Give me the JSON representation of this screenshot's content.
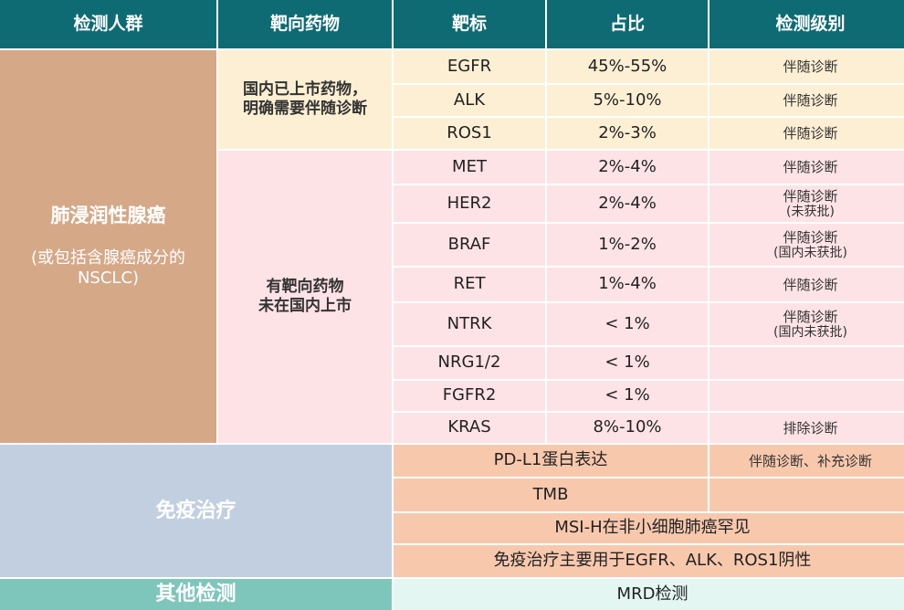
{
  "header": [
    "检测人群",
    "靶向药物",
    "靶标",
    "占比",
    "检测级别"
  ],
  "lung_group": {
    "title": "肺浸润性腺癌",
    "subtitle": "(或包括含腺癌成分的NSCLC)"
  },
  "drug_groups": [
    {
      "line1": "国内已上市药物，",
      "line2": "明确需要伴随诊断"
    },
    {
      "line1": "有靶向药物",
      "line2": "未在国内上市"
    }
  ],
  "targets": [
    {
      "name": "EGFR",
      "pct": "45%-55%",
      "level": "伴随诊断",
      "level_note": ""
    },
    {
      "name": "ALK",
      "pct": "5%-10%",
      "level": "伴随诊断",
      "level_note": ""
    },
    {
      "name": "ROS1",
      "pct": "2%-3%",
      "level": "伴随诊断",
      "level_note": ""
    },
    {
      "name": "MET",
      "pct": "2%-4%",
      "level": "伴随诊断",
      "level_note": ""
    },
    {
      "name": "HER2",
      "pct": "2%-4%",
      "level": "伴随诊断",
      "level_note": "(未获批)"
    },
    {
      "name": "BRAF",
      "pct": "1%-2%",
      "level": "伴随诊断",
      "level_note": "(国内未获批)"
    },
    {
      "name": "RET",
      "pct": "1%-4%",
      "level": "伴随诊断",
      "level_note": ""
    },
    {
      "name": "NTRK",
      "pct": "< 1%",
      "level": "伴随诊断",
      "level_note": "(国内未获批)"
    },
    {
      "name": "NRG1/2",
      "pct": "< 1%",
      "level": "",
      "level_note": ""
    },
    {
      "name": "FGFR2",
      "pct": "< 1%",
      "level": "",
      "level_note": ""
    },
    {
      "name": "KRAS",
      "pct": "8%-10%",
      "level": "排除诊断",
      "level_note": ""
    }
  ],
  "immuno": {
    "title": "免疫治疗",
    "rows": [
      {
        "text": "PD-L1蛋白表达",
        "level": "伴随诊断、补充诊断"
      },
      {
        "text": "TMB",
        "level": ""
      },
      {
        "text": "MSI-H在非小细胞肺癌罕见"
      },
      {
        "text": "免疫治疗主要用于EGFR、ALK、ROS1阴性"
      }
    ]
  },
  "other": {
    "title": "其他检测",
    "text": "MRD检测"
  }
}
